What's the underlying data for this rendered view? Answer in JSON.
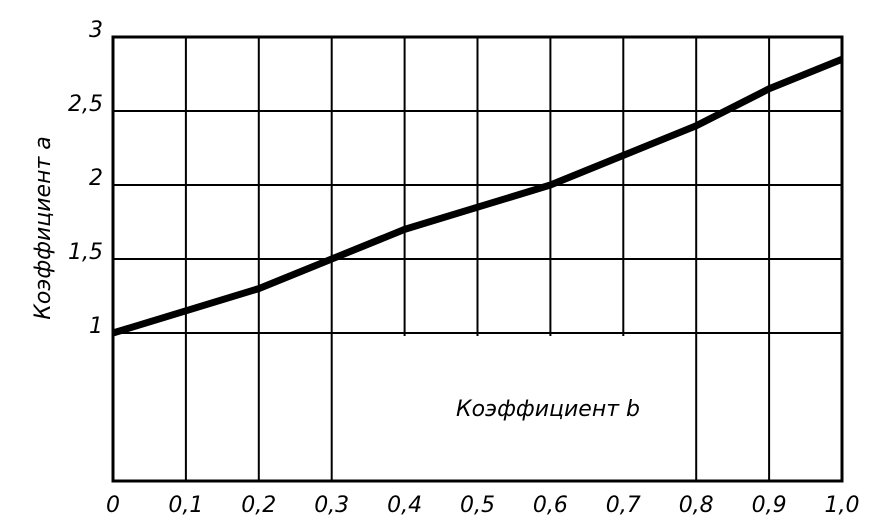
{
  "chart_data": {
    "type": "line",
    "xlabel": "Коэффициент b",
    "ylabel": "Коэффициент a",
    "x": [
      0,
      0.1,
      0.2,
      0.3,
      0.4,
      0.5,
      0.6,
      0.7,
      0.8,
      0.9,
      1.0
    ],
    "series": [
      {
        "color": "#000000",
        "values": [
          1.0,
          1.15,
          1.3,
          1.5,
          1.7,
          1.85,
          2.0,
          2.2,
          2.4,
          2.65,
          2.85
        ]
      }
    ],
    "xlim": [
      0,
      1.0
    ],
    "xticks": [
      0,
      {
        "value": 0.1,
        "label": "0,1"
      },
      {
        "value": 0.2,
        "label": "0,2"
      },
      {
        "value": 0.3,
        "label": "0,3"
      },
      {
        "value": 0.4,
        "label": "0,4"
      },
      {
        "value": 0.5,
        "label": "0,5"
      },
      {
        "value": 0.6,
        "label": "0,6"
      },
      {
        "value": 0.7,
        "label": "0,7"
      },
      {
        "value": 0.8,
        "label": "0,8"
      },
      {
        "value": 0.9,
        "label": "0,9"
      },
      {
        "value": 1.0,
        "label": "1,0"
      }
    ],
    "ylim": [
      0,
      3
    ],
    "yticks": [
      1,
      {
        "value": 1.5,
        "label": "1,5"
      },
      2,
      {
        "value": 2.5,
        "label": "2,5"
      },
      3
    ],
    "grid": true
  }
}
